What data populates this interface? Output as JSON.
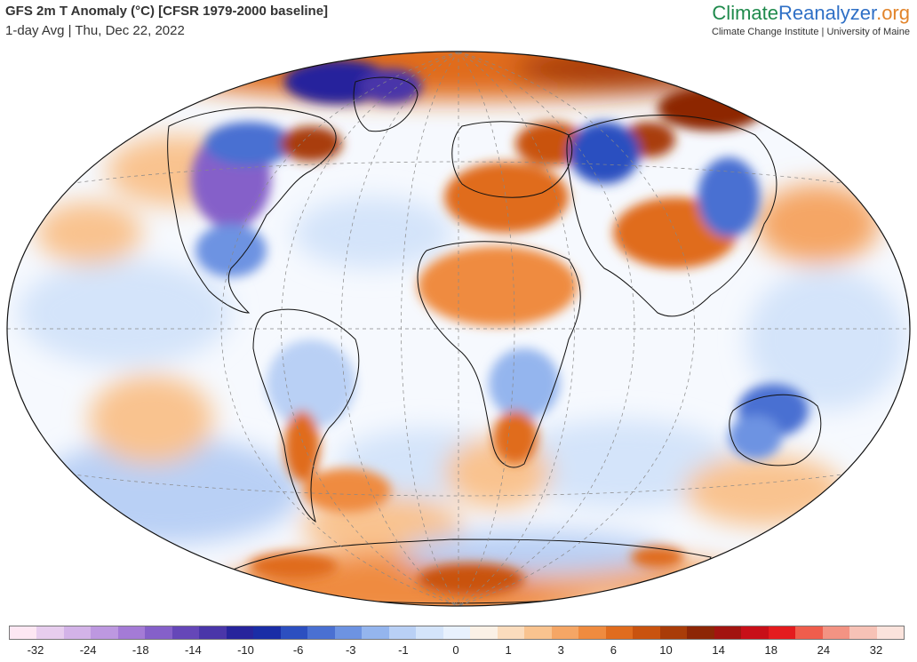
{
  "header": {
    "title": "GFS 2m T Anomaly (°C) [CFSR 1979-2000 baseline]",
    "subtitle": "1-day Avg | Thu, Dec 22, 2022"
  },
  "brand": {
    "name_part1": "Climate",
    "name_part2": "Reanalyzer",
    "name_part3": ".org",
    "tagline": "Climate Change Institute | University of Maine",
    "colors": {
      "climate": "#1f8a4c",
      "reanalyzer": "#2f70c6",
      "org": "#e2842a"
    }
  },
  "map": {
    "projection": "Winkel Tripel",
    "ocean_base_color": "#ffffff",
    "land_outline_color": "#000000",
    "graticule_style": "dashed gray"
  },
  "colorbar": {
    "tick_labels": [
      "-32",
      "-24",
      "-18",
      "-14",
      "-10",
      "-6",
      "-3",
      "-1",
      "0",
      "1",
      "3",
      "6",
      "10",
      "14",
      "18",
      "24",
      "32"
    ],
    "colors": [
      "#fde7f3",
      "#e7cdee",
      "#d3b3e8",
      "#bd98e0",
      "#a47bd6",
      "#8560c9",
      "#6547b8",
      "#4a36a9",
      "#27249c",
      "#1a2da6",
      "#2c4fc0",
      "#4a70d2",
      "#6d93e2",
      "#94b5ee",
      "#b9d0f5",
      "#d4e4fa",
      "#e8f1fd",
      "#fbf1e6",
      "#fbdcbd",
      "#f9c38f",
      "#f5a665",
      "#ef8b3f",
      "#e06c1e",
      "#c9530f",
      "#a93c08",
      "#8d2606",
      "#a21410",
      "#c80f18",
      "#e41b1e",
      "#ef5d4c",
      "#f39383",
      "#f7c2b6",
      "#fbe3dc"
    ]
  }
}
